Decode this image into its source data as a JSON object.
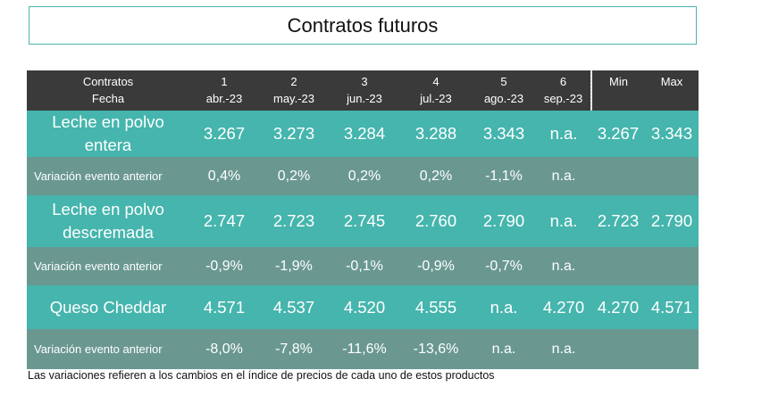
{
  "title": "Contratos futuros",
  "header": {
    "label_top": "Contratos",
    "label_bottom": "Fecha",
    "contracts": [
      {
        "num": "1",
        "date": "abr.-23"
      },
      {
        "num": "2",
        "date": "may.-23"
      },
      {
        "num": "3",
        "date": "jun.-23"
      },
      {
        "num": "4",
        "date": "jul.-23"
      },
      {
        "num": "5",
        "date": "ago.-23"
      },
      {
        "num": "6",
        "date": "sep.-23"
      }
    ],
    "min": "Min",
    "max": "Max"
  },
  "rows": [
    {
      "name": "Leche en polvo entera",
      "values": [
        "3.267",
        "3.273",
        "3.284",
        "3.288",
        "3.343",
        "n.a."
      ],
      "min": "3.267",
      "max": "3.343"
    },
    {
      "name": "Variación evento anterior",
      "values": [
        "0,4%",
        "0,2%",
        "0,2%",
        "0,2%",
        "-1,1%",
        "n.a."
      ],
      "min": "",
      "max": ""
    },
    {
      "name": "Leche en polvo descremada",
      "values": [
        "2.747",
        "2.723",
        "2.745",
        "2.760",
        "2.790",
        "n.a."
      ],
      "min": "2.723",
      "max": "2.790"
    },
    {
      "name": "Variación evento anterior",
      "values": [
        "-0,9%",
        "-1,9%",
        "-0,1%",
        "-0,9%",
        "-0,7%",
        "n.a."
      ],
      "min": "",
      "max": ""
    },
    {
      "name": "Queso Cheddar",
      "values": [
        "4.571",
        "4.537",
        "4.520",
        "4.555",
        "n.a.",
        "4.270"
      ],
      "min": "4.270",
      "max": "4.571"
    },
    {
      "name": "Variación evento anterior",
      "values": [
        "-8,0%",
        "-7,8%",
        "-11,6%",
        "-13,6%",
        "n.a.",
        "n.a."
      ],
      "min": "",
      "max": ""
    }
  ],
  "footnote": "Las variaciones refieren a los cambios en el índice de precios de cada uno de estos productos",
  "colors": {
    "header_bg": "#3a3a3a",
    "product_row": "#45b5ad",
    "variation_row": "#6a9891",
    "title_border": "#4db6ac"
  }
}
